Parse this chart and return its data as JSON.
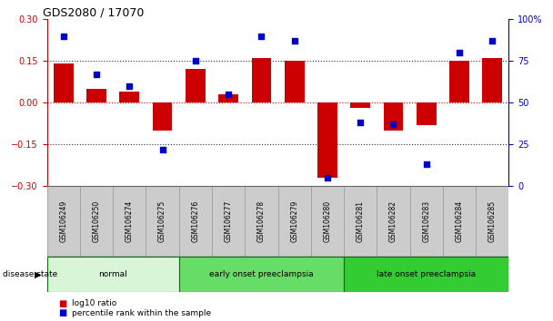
{
  "title": "GDS2080 / 17070",
  "samples": [
    "GSM106249",
    "GSM106250",
    "GSM106274",
    "GSM106275",
    "GSM106276",
    "GSM106277",
    "GSM106278",
    "GSM106279",
    "GSM106280",
    "GSM106281",
    "GSM106282",
    "GSM106283",
    "GSM106284",
    "GSM106285"
  ],
  "log10_ratio": [
    0.14,
    0.05,
    0.04,
    -0.1,
    0.12,
    0.03,
    0.16,
    0.15,
    -0.27,
    -0.02,
    -0.1,
    -0.08,
    0.15,
    0.16
  ],
  "percentile_rank": [
    90,
    67,
    60,
    22,
    75,
    55,
    90,
    87,
    5,
    38,
    37,
    13,
    80,
    87
  ],
  "groups": [
    {
      "label": "normal",
      "start": 0,
      "end": 4,
      "color": "#d8f5d8"
    },
    {
      "label": "early onset preeclampsia",
      "start": 4,
      "end": 9,
      "color": "#66dd66"
    },
    {
      "label": "late onset preeclampsia",
      "start": 9,
      "end": 14,
      "color": "#33cc33"
    }
  ],
  "ylim_left": [
    -0.3,
    0.3
  ],
  "ylim_right": [
    0,
    100
  ],
  "yticks_left": [
    -0.3,
    -0.15,
    0,
    0.15,
    0.3
  ],
  "yticks_right": [
    0,
    25,
    50,
    75,
    100
  ],
  "bar_color": "#cc0000",
  "dot_color": "#0000cc",
  "hline_color": "#cc0000",
  "dotted_color": "#333333",
  "bg_color": "#ffffff",
  "ylabel_left_color": "#cc0000",
  "ylabel_right_color": "#0000cc",
  "legend_bar_label": "log10 ratio",
  "legend_dot_label": "percentile rank within the sample",
  "label_bg_color": "#cccccc",
  "label_edge_color": "#999999"
}
